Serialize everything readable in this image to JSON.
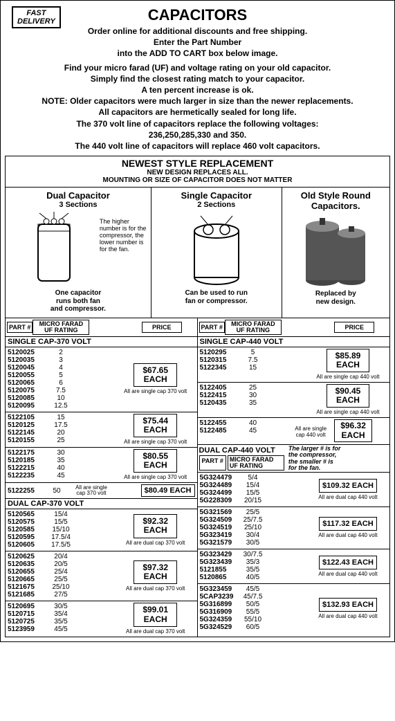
{
  "badge": {
    "l1": "FAST",
    "l2": "DELIVERY"
  },
  "title": "CAPACITORS",
  "intro": [
    "Order online for additional discounts and free shipping.",
    "Enter the Part Number",
    "into the ADD TO CART box below image.",
    "Find your micro farad (UF) and voltage rating on your old capacitor.",
    "Simply find the closest rating match to your capacitor.",
    "A ten percent increase is ok.",
    "NOTE: Older capacitors were much larger in size than the newer replacements.",
    "All capacitors are hermetically sealed for long life.",
    "The 370 volt line of capacitors replace the following voltages:",
    "236,250,285,330 and 350.",
    "The 440 volt line of capacitors will replace 460 volt capacitors."
  ],
  "banner": {
    "b1": "NEWEST STYLE REPLACEMENT",
    "b2": "NEW DESIGN REPLACES ALL.",
    "b3": "MOUNTING OR SIZE OF CAPACITOR DOES NOT MATTER"
  },
  "diag": {
    "d1": {
      "title": "Dual Capacitor",
      "sub": "3 Sections",
      "side": "The higher number is for the compressor, the lower number is for the fan.",
      "cap": "One capacitor\nruns both fan\nand compressor."
    },
    "d2": {
      "title": "Single Capacitor",
      "sub": "2 Sections",
      "cap": "Can be used to run\nfan or compressor."
    },
    "d3": {
      "title": "Old Style Round\nCapacitors.",
      "cap": "Replaced by\nnew design."
    }
  },
  "hdr": {
    "part": "PART #",
    "uf": "MICRO FARAD\nUF RATING",
    "price": "PRICE"
  },
  "left": {
    "s1": "SINGLE CAP-370 VOLT",
    "g1": {
      "rows": [
        [
          "5120025",
          "2"
        ],
        [
          "5120035",
          "3"
        ],
        [
          "5120045",
          "4"
        ],
        [
          "5120055",
          "5"
        ],
        [
          "5120065",
          "6"
        ],
        [
          "5120075",
          "7.5"
        ],
        [
          "5120085",
          "10"
        ],
        [
          "5120095",
          "12.5"
        ]
      ],
      "price": "$67.65\nEACH",
      "note": "All are single cap 370 volt"
    },
    "g2": {
      "rows": [
        [
          "5122105",
          "15"
        ],
        [
          "5120125",
          "17.5"
        ],
        [
          "",
          ""
        ],
        [
          "5122145",
          "20"
        ],
        [
          "5120155",
          "25"
        ]
      ],
      "price": "$75.44\nEACH",
      "note": "All are single cap 370 volt"
    },
    "g3": {
      "rows": [
        [
          "5122175",
          "30"
        ],
        [
          "5120185",
          "35"
        ],
        [
          "",
          ""
        ],
        [
          "5122215",
          "40"
        ],
        [
          "",
          ""
        ],
        [
          "5122235",
          "45"
        ]
      ],
      "price": "$80.55\nEACH",
      "note": "All are single cap 370 volt"
    },
    "g4": {
      "pn": "5122255",
      "uf": "50",
      "mid": "All are single\ncap 370 volt",
      "price": "$80.49 EACH"
    },
    "s2": "DUAL CAP-370 VOLT",
    "g5": {
      "rows": [
        [
          "5120565",
          "15/4"
        ],
        [
          "5120575",
          "15/5"
        ],
        [
          "5120585",
          "15/10"
        ],
        [
          "5120595",
          "17.5/4"
        ],
        [
          "5120605",
          "17.5/5"
        ]
      ],
      "price": "$92.32\nEACH",
      "note": "All are dual cap 370 volt"
    },
    "g6": {
      "rows": [
        [
          "5120625",
          "20/4"
        ],
        [
          "5120635",
          "20/5"
        ],
        [
          "5120655",
          "25/4"
        ],
        [
          "5120665",
          "25/5"
        ],
        [
          "5121675",
          "25/10"
        ],
        [
          "5121685",
          "27/5"
        ]
      ],
      "price": "$97.32\nEACH",
      "note": "All are dual cap 370 volt"
    },
    "g7": {
      "rows": [
        [
          "5120695",
          "30/5"
        ],
        [
          "5120715",
          "35/4"
        ],
        [
          "5120725",
          "35/5"
        ],
        [
          "",
          ""
        ],
        [
          "5123959",
          "45/5"
        ]
      ],
      "price": "$99.01\nEACH",
      "note": "All are dual cap 370 volt"
    }
  },
  "right": {
    "s1": "SINGLE CAP-440 VOLT",
    "g1": {
      "rows": [
        [
          "5120295",
          "5"
        ],
        [
          "5120315",
          "7.5"
        ],
        [
          "",
          ""
        ],
        [
          "5122345",
          "15"
        ]
      ],
      "price": "$85.89\nEACH",
      "note": "All are single cap 440 volt"
    },
    "g2": {
      "rows": [
        [
          "5122405",
          "25"
        ],
        [
          "",
          ""
        ],
        [
          "5122415",
          "30"
        ],
        [
          "5120435",
          "35"
        ]
      ],
      "price": "$90.45\nEACH",
      "note": "All are single cap 440 volt"
    },
    "g3": {
      "rows": [
        [
          "5122455",
          "40"
        ],
        [
          "",
          ""
        ],
        [
          "5122485",
          "45"
        ]
      ],
      "mid": "All are single\ncap 440 volt",
      "price": "$96.32\nEACH"
    },
    "s2": "DUAL CAP-440 VOLT",
    "dualhdr": {
      "part": "PART #",
      "uf": "MICRO FARAD\nUF RATING",
      "side": "The larger # is for\nthe compressor,\nthe smaller # is\nfor the fan."
    },
    "g4": {
      "rows": [
        [
          "5G324479",
          "5/4"
        ],
        [
          "5G324489",
          "15/4"
        ],
        [
          "5G324499",
          "15/5"
        ],
        [
          "5G228309",
          "20/15"
        ]
      ],
      "price": "$109.32 EACH",
      "note": "All are dual cap 440 volt"
    },
    "g5": {
      "rows": [
        [
          "5G321569",
          "25/5"
        ],
        [
          "5G324509",
          "25/7.5"
        ],
        [
          "5G324519",
          "25/10"
        ],
        [
          "5G323419",
          "30/4"
        ],
        [
          "5G321579",
          "30/5"
        ]
      ],
      "price": "$117.32 EACH",
      "note": "All are dual cap 440 volt"
    },
    "g6": {
      "rows": [
        [
          "5G323429",
          "30/7.5"
        ],
        [
          "5G323439",
          "35/3"
        ],
        [
          "",
          ""
        ],
        [
          "5121855",
          "35/5"
        ],
        [
          "5120865",
          "40/5"
        ]
      ],
      "price": "$122.43 EACH",
      "note": "All are dual cap 440 volt"
    },
    "g7": {
      "rows": [
        [
          "5G323459",
          "45/5"
        ],
        [
          "5CAP3239",
          "45/7.5"
        ],
        [
          "5G316899",
          "50/5"
        ],
        [
          "5G316909",
          "55/5"
        ],
        [
          "5G324359",
          "55/10"
        ],
        [
          "5G324529",
          "60/5"
        ]
      ],
      "price": "$132.93 EACH",
      "note": "All are dual cap 440 volt"
    }
  }
}
